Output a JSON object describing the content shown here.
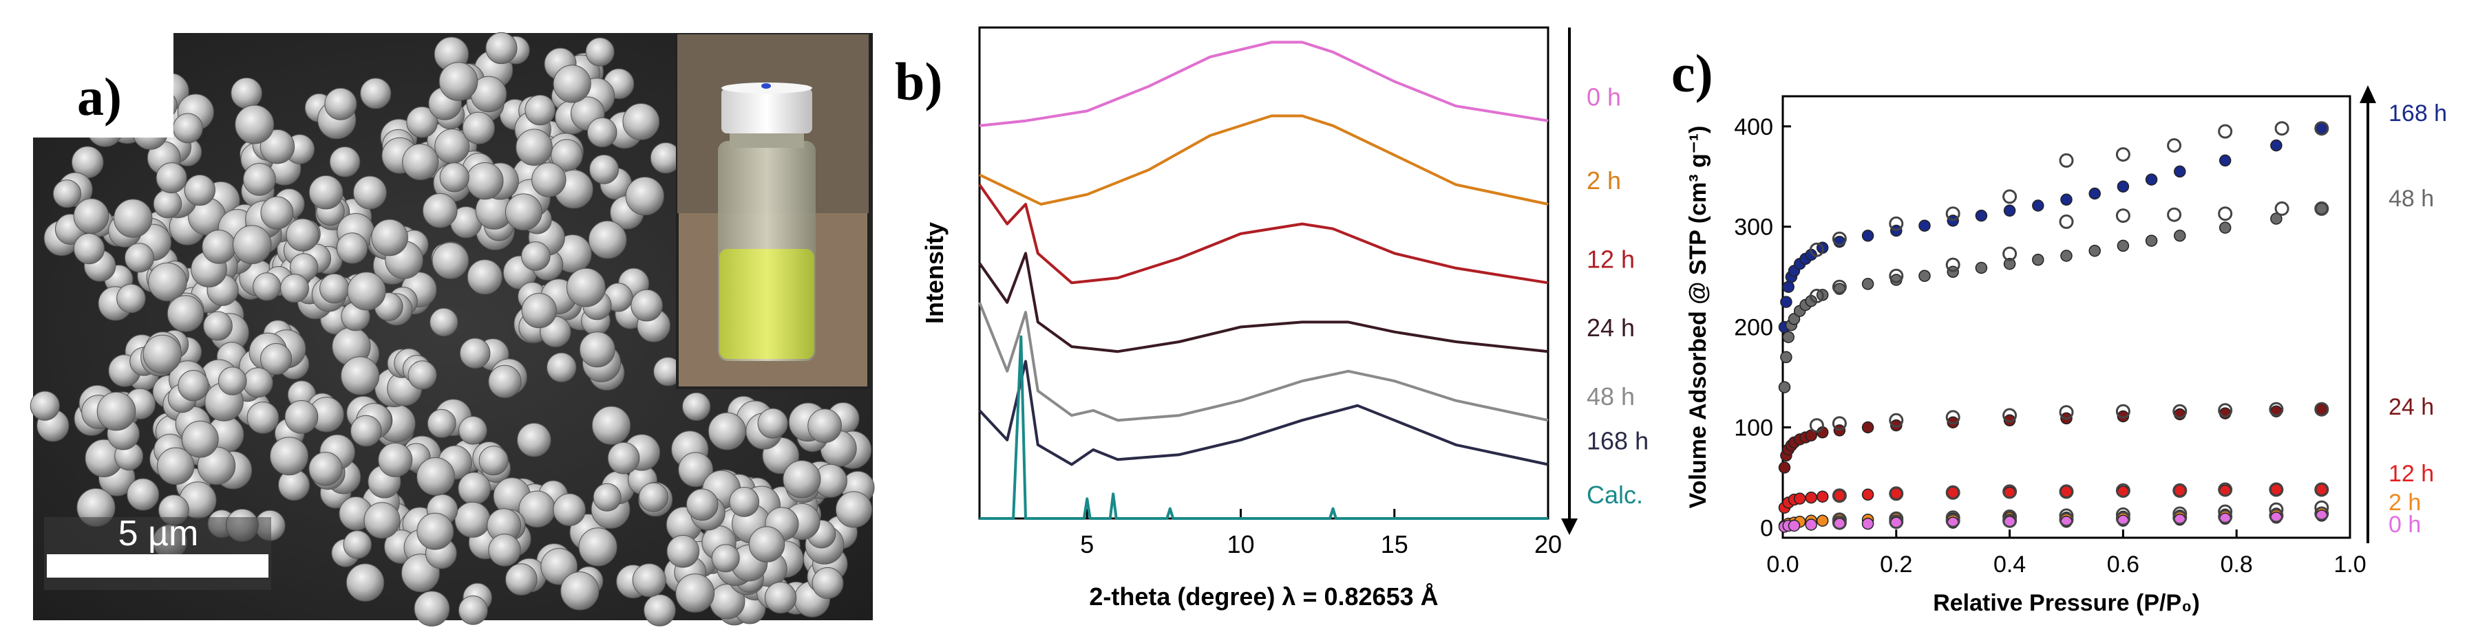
{
  "panel_a": {
    "label": "a)",
    "scale_bar_text": "5 µm",
    "inset_description_icon": "vial-photo"
  },
  "chart_data": [
    {
      "id": "b",
      "label": "b)",
      "type": "line",
      "title": "",
      "xlabel": "2-theta (degree) λ = 0.82653 Å",
      "ylabel": "Intensity",
      "xlim": [
        1.5,
        20
      ],
      "xticks": [
        5,
        10,
        15,
        20
      ],
      "yticks": [],
      "arrow": "down",
      "series": [
        {
          "name": "0 h",
          "color": "#e070d0",
          "offset": 0.8,
          "x": [
            1.5,
            3,
            5,
            7,
            9,
            11,
            12,
            13,
            15,
            17,
            20
          ],
          "y": [
            0.0,
            0.01,
            0.03,
            0.08,
            0.14,
            0.17,
            0.17,
            0.15,
            0.09,
            0.04,
            0.01
          ]
        },
        {
          "name": "2 h",
          "color": "#d8801a",
          "offset": 0.64,
          "x": [
            1.5,
            2.5,
            3.5,
            5,
            7,
            9,
            11,
            12,
            13,
            15,
            17,
            20
          ],
          "y": [
            0.06,
            0.03,
            0.0,
            0.02,
            0.07,
            0.14,
            0.18,
            0.18,
            0.16,
            0.1,
            0.04,
            0.0
          ]
        },
        {
          "name": "12 h",
          "color": "#b01e24",
          "offset": 0.48,
          "x": [
            1.5,
            2.4,
            3.0,
            3.4,
            4.5,
            6,
            8,
            10,
            12,
            13,
            15,
            17,
            20
          ],
          "y": [
            0.2,
            0.12,
            0.16,
            0.06,
            0.0,
            0.01,
            0.05,
            0.1,
            0.12,
            0.11,
            0.06,
            0.03,
            0.0
          ]
        },
        {
          "name": "24 h",
          "color": "#3a1a22",
          "offset": 0.34,
          "x": [
            1.5,
            2.4,
            3.0,
            3.4,
            4.5,
            6,
            8,
            10,
            12,
            13.5,
            15,
            17,
            20
          ],
          "y": [
            0.18,
            0.1,
            0.2,
            0.06,
            0.01,
            0.0,
            0.02,
            0.05,
            0.06,
            0.06,
            0.04,
            0.02,
            0.0
          ]
        },
        {
          "name": "48 h",
          "color": "#8a8a8a",
          "offset": 0.18,
          "x": [
            1.5,
            2.4,
            3.0,
            3.4,
            4.5,
            5.2,
            6,
            8,
            10,
            12,
            13.5,
            15,
            17,
            20
          ],
          "y": [
            0.26,
            0.12,
            0.24,
            0.08,
            0.03,
            0.04,
            0.02,
            0.03,
            0.06,
            0.1,
            0.12,
            0.1,
            0.06,
            0.02
          ]
        },
        {
          "name": "168 h",
          "color": "#2a2a48",
          "offset": 0.1,
          "x": [
            1.5,
            2.4,
            3.0,
            3.4,
            4.5,
            5.2,
            6,
            8,
            10,
            12,
            13.8,
            15,
            17,
            20
          ],
          "y": [
            0.12,
            0.06,
            0.22,
            0.05,
            0.01,
            0.04,
            0.02,
            0.03,
            0.06,
            0.1,
            0.13,
            0.1,
            0.05,
            0.01
          ]
        },
        {
          "name": "Calc.",
          "color": "#1a8a8a",
          "offset": 0.0,
          "x": [
            1.5,
            2.6,
            2.85,
            3.0,
            3.2,
            4.9,
            5.0,
            5.1,
            5.75,
            5.85,
            5.95,
            7.6,
            7.7,
            7.8,
            12.9,
            13.0,
            13.1,
            20
          ],
          "y": [
            0.0,
            0.0,
            0.37,
            0.0,
            0.0,
            0.0,
            0.04,
            0.0,
            0.0,
            0.05,
            0.0,
            0.0,
            0.02,
            0.0,
            0.0,
            0.02,
            0.0,
            0.0
          ]
        }
      ]
    },
    {
      "id": "c",
      "label": "c)",
      "type": "scatter",
      "title": "",
      "xlabel": "Relative Pressure (P/P₀)",
      "ylabel": "Volume Adsorbed @ STP (cm³ g⁻¹)",
      "xlim": [
        0.0,
        1.0
      ],
      "ylim": [
        -10,
        430
      ],
      "xticks": [
        0.0,
        0.2,
        0.4,
        0.6,
        0.8,
        1.0
      ],
      "yticks": [
        0,
        100,
        200,
        300,
        400
      ],
      "arrow": "up",
      "series": [
        {
          "name": "168 h",
          "color": "#1a2a8a",
          "ads_x": [
            0.003,
            0.006,
            0.01,
            0.015,
            0.02,
            0.03,
            0.04,
            0.05,
            0.07,
            0.1,
            0.15,
            0.2,
            0.25,
            0.3,
            0.35,
            0.4,
            0.45,
            0.5,
            0.55,
            0.6,
            0.65,
            0.7,
            0.78,
            0.87,
            0.95
          ],
          "ads_y": [
            200,
            225,
            240,
            250,
            256,
            263,
            268,
            272,
            279,
            285,
            291,
            296,
            301,
            306,
            311,
            316,
            321,
            327,
            333,
            340,
            347,
            355,
            366,
            381,
            398
          ],
          "des_x": [
            0.95,
            0.88,
            0.78,
            0.69,
            0.6,
            0.5,
            0.4,
            0.3,
            0.2,
            0.1,
            0.06
          ],
          "des_y": [
            398,
            398,
            395,
            381,
            372,
            366,
            330,
            313,
            303,
            288,
            277
          ]
        },
        {
          "name": "48 h",
          "color": "#6a6a6a",
          "ads_x": [
            0.003,
            0.006,
            0.01,
            0.015,
            0.02,
            0.03,
            0.04,
            0.05,
            0.07,
            0.1,
            0.15,
            0.2,
            0.25,
            0.3,
            0.35,
            0.4,
            0.45,
            0.5,
            0.55,
            0.6,
            0.65,
            0.7,
            0.78,
            0.87,
            0.95
          ],
          "ads_y": [
            140,
            170,
            190,
            202,
            208,
            216,
            222,
            226,
            232,
            238,
            243,
            247,
            251,
            255,
            259,
            263,
            267,
            271,
            276,
            281,
            286,
            291,
            299,
            308,
            318
          ],
          "des_x": [
            0.95,
            0.88,
            0.78,
            0.69,
            0.6,
            0.5,
            0.4,
            0.3,
            0.2,
            0.1,
            0.06
          ],
          "des_y": [
            318,
            318,
            313,
            312,
            311,
            305,
            273,
            262,
            251,
            240,
            231
          ]
        },
        {
          "name": "24 h",
          "color": "#7a1818",
          "ads_x": [
            0.003,
            0.006,
            0.01,
            0.015,
            0.02,
            0.03,
            0.04,
            0.05,
            0.07,
            0.1,
            0.15,
            0.2,
            0.3,
            0.4,
            0.5,
            0.6,
            0.7,
            0.78,
            0.87,
            0.95
          ],
          "ads_y": [
            60,
            72,
            78,
            82,
            85,
            88,
            90,
            92,
            95,
            97,
            100,
            102,
            105,
            107,
            109,
            111,
            113,
            114,
            116,
            118
          ],
          "des_x": [
            0.95,
            0.87,
            0.78,
            0.7,
            0.6,
            0.5,
            0.4,
            0.3,
            0.2,
            0.1,
            0.06
          ],
          "des_y": [
            118,
            118,
            117,
            116,
            116,
            115,
            112,
            110,
            107,
            104,
            102
          ]
        },
        {
          "name": "12 h",
          "color": "#e02020",
          "ads_x": [
            0.003,
            0.01,
            0.02,
            0.03,
            0.05,
            0.07,
            0.1,
            0.15,
            0.2,
            0.3,
            0.4,
            0.5,
            0.6,
            0.7,
            0.78,
            0.87,
            0.95
          ],
          "ads_y": [
            20,
            25,
            28,
            29,
            30,
            31,
            32,
            33,
            34,
            35,
            35,
            36,
            36,
            37,
            37,
            38,
            38
          ],
          "des_x": [
            0.95,
            0.87,
            0.78,
            0.7,
            0.6,
            0.5,
            0.4,
            0.3,
            0.2,
            0.1
          ],
          "des_y": [
            38,
            38,
            38,
            37,
            37,
            36,
            36,
            35,
            34,
            32
          ]
        },
        {
          "name": "2 h",
          "color": "#f08a20",
          "ads_x": [
            0.003,
            0.01,
            0.02,
            0.03,
            0.05,
            0.07,
            0.1,
            0.15,
            0.2,
            0.3,
            0.4,
            0.5,
            0.6,
            0.7,
            0.78,
            0.87,
            0.95
          ],
          "ads_y": [
            2,
            4,
            5,
            6,
            7,
            7,
            8,
            8,
            9,
            9,
            10,
            10,
            11,
            12,
            13,
            14,
            15
          ],
          "des_x": [
            0.95,
            0.87,
            0.78,
            0.7,
            0.6,
            0.5,
            0.4,
            0.3,
            0.2,
            0.1
          ],
          "des_y": [
            20,
            18,
            16,
            14,
            13,
            12,
            11,
            10,
            9,
            8
          ]
        },
        {
          "name": "0 h",
          "color": "#e070e0",
          "ads_x": [
            0.003,
            0.01,
            0.02,
            0.05,
            0.1,
            0.15,
            0.2,
            0.3,
            0.4,
            0.5,
            0.6,
            0.7,
            0.78,
            0.87,
            0.95
          ],
          "ads_y": [
            1,
            2,
            2,
            3,
            4,
            4,
            5,
            5,
            6,
            6,
            7,
            8,
            9,
            10,
            12
          ],
          "des_x": [
            0.95,
            0.87,
            0.78,
            0.7,
            0.6,
            0.5,
            0.4,
            0.3,
            0.2,
            0.1
          ],
          "des_y": [
            14,
            12,
            11,
            10,
            9,
            8,
            7,
            7,
            6,
            5
          ]
        }
      ]
    }
  ]
}
